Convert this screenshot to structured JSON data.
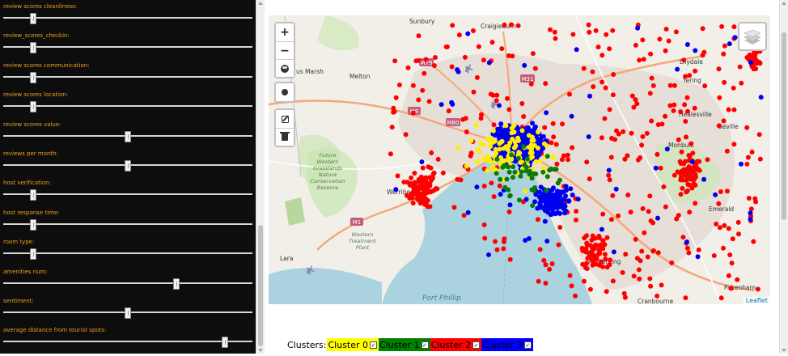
{
  "sliders": [
    {
      "label": "review scores cleanliness:",
      "value": 0.11
    },
    {
      "label": "review_scores_checkin:",
      "value": 0.11
    },
    {
      "label": "review scores communication:",
      "value": 0.11
    },
    {
      "label": "review scores location:",
      "value": 0.11
    },
    {
      "label": "review scores value:",
      "value": 0.5
    },
    {
      "label": "reviews per month:",
      "value": 0.5
    },
    {
      "label": "host verification:",
      "value": 0.11
    },
    {
      "label": "host response time:",
      "value": 0.11
    },
    {
      "label": "room type:",
      "value": 0.11
    },
    {
      "label": "amenities num:",
      "value": 0.7
    },
    {
      "label": "sentiment:",
      "value": 0.5
    },
    {
      "label": "average distance from tourist spots:",
      "value": 0.9
    }
  ],
  "map": {
    "zoom_in": "+",
    "zoom_out": "−",
    "attribution": "Leaflet",
    "labels": {
      "sunbury": "Sunbury",
      "craigieburn": "Craigieburn",
      "melton": "Melton",
      "bacchus_marsh": "us Marsh",
      "lilydale": "Lilydale",
      "yering": "Yering",
      "healesville": "Healesville",
      "seville": "Seville",
      "monbulk": "Monbulk",
      "emerald": "Emerald",
      "dandenong": "Dandenong",
      "werribee": "Werribee",
      "lara": "Lara",
      "pakenham": "Pakenham",
      "cranbourne": "Cranbourne",
      "port_phillip": "Port Phillip",
      "melbourne": "M",
      "future_western": "Future\nWestern\nGrasslands\nNature\nConservation\nReserve",
      "treatment_plant": "Western\nTreatment\nPlant",
      "corner_n": "N"
    },
    "roads": {
      "m79": "M79",
      "m31": "M31",
      "m8": "M8",
      "m80": "M80",
      "m1": "M1"
    },
    "colors": {
      "water": "#aad3df",
      "land": "#f2efe9",
      "park": "#c8e6b0",
      "urban": "#e6dfd7",
      "road": "#f5a67a"
    }
  },
  "legend": {
    "title": "Clusters:",
    "items": [
      {
        "label": "Cluster 0",
        "color": "#ffff00",
        "checked": "✓"
      },
      {
        "label": "Cluster 1",
        "color": "#008000",
        "checked": "✓"
      },
      {
        "label": "Cluster 2",
        "color": "#ff0000",
        "checked": "✓"
      },
      {
        "label": "Cluster 3",
        "color": "#0000ff",
        "checked": "✓"
      }
    ]
  },
  "points": {
    "cluster0_color": "#ffee00",
    "cluster1_color": "#0a7a0a",
    "cluster2_color": "#ff0000",
    "cluster3_color": "#0000ee"
  }
}
